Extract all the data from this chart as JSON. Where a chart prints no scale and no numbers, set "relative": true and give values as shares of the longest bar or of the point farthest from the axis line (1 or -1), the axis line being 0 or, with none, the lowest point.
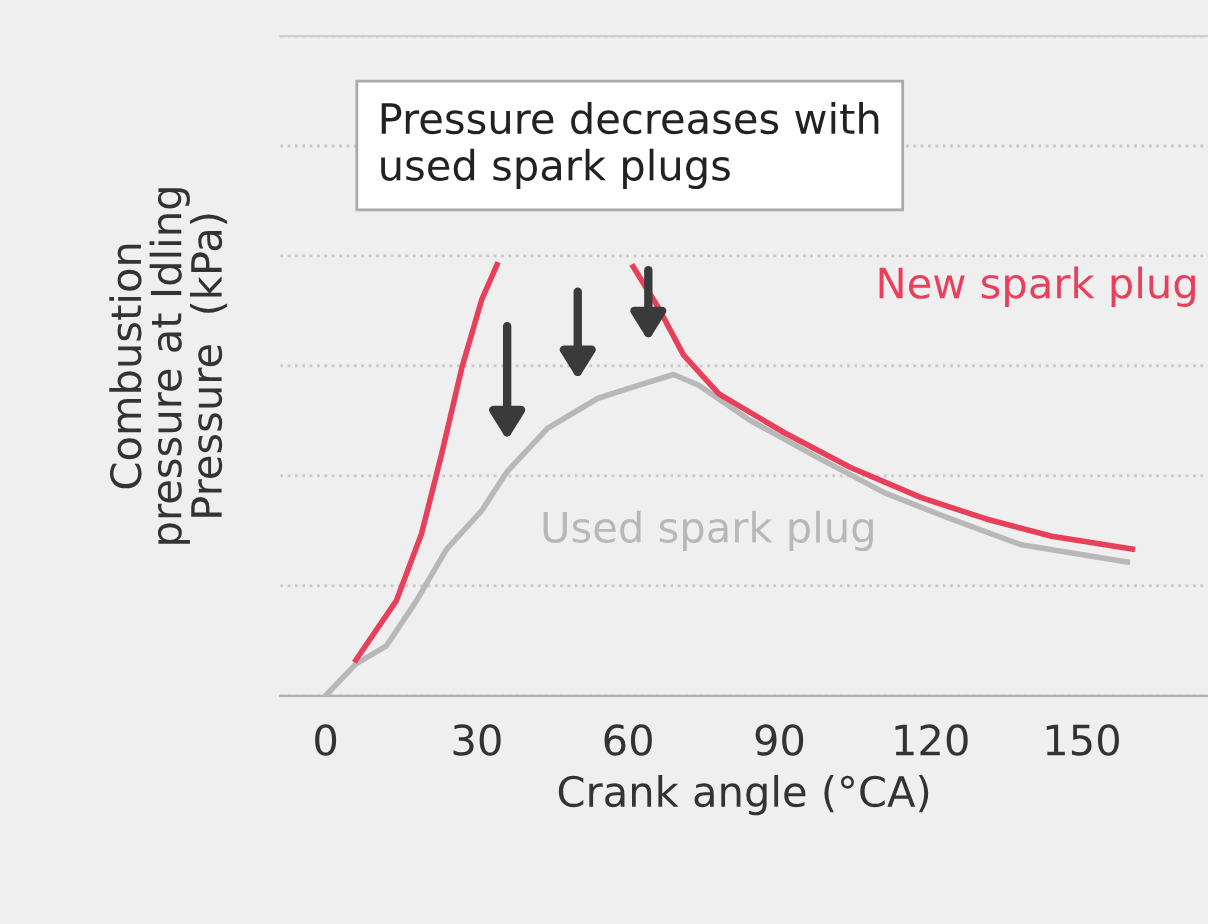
{
  "chart_data": {
    "type": "line",
    "relative": true,
    "xlabel": "Crank angle (°CA)",
    "ylabel": "Combustion\npressure at Idling\nPressure  (kPa)",
    "xlim": [
      -9,
      175
    ],
    "xticks": [
      0,
      30,
      60,
      90,
      120,
      150
    ],
    "grid": "y",
    "marker": "none",
    "line_style": "solid",
    "tick_labels": "x",
    "annotations": [
      "Pressure decreases with\nused spark plugs"
    ],
    "series": [
      {
        "name": "New spark plug",
        "color": "#e8405a",
        "x": [
          6,
          14,
          19,
          23,
          27,
          31,
          34,
          47,
          61,
          66,
          71,
          78,
          91,
          104,
          118,
          131,
          144,
          160
        ],
        "values": [
          0.083,
          0.22,
          0.375,
          0.56,
          0.76,
          0.92,
          1.0,
          null,
          0.995,
          0.9,
          0.79,
          0.7,
          0.61,
          0.53,
          0.46,
          0.41,
          0.37,
          0.34
        ]
      },
      {
        "name": "Used spark plug",
        "color": "#b8b8b8",
        "x": [
          0,
          6,
          12,
          18,
          24,
          31,
          36,
          44,
          54,
          62,
          69,
          74,
          84,
          98,
          111,
          124,
          138,
          159
        ],
        "values": [
          0,
          0.074,
          0.115,
          0.22,
          0.34,
          0.43,
          0.52,
          0.62,
          0.69,
          0.72,
          0.745,
          0.72,
          0.64,
          0.55,
          0.47,
          0.41,
          0.35,
          0.31
        ]
      }
    ]
  }
}
